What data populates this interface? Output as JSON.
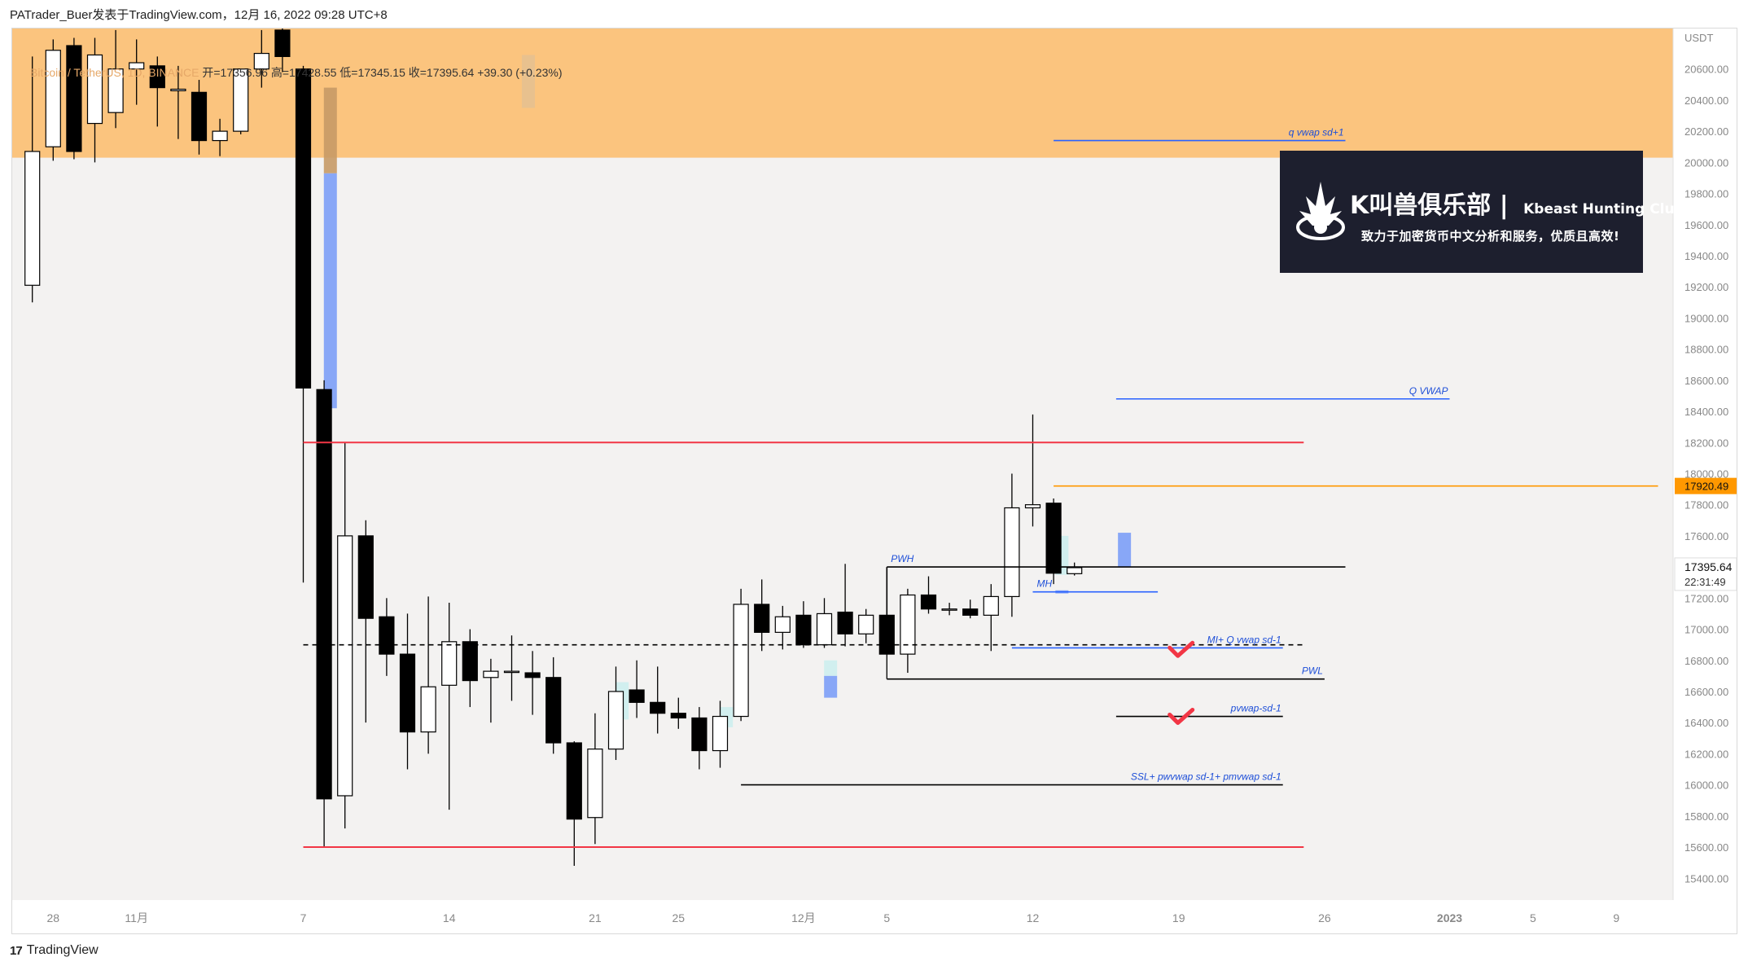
{
  "header": {
    "byline": "PATrader_Buer发表于TradingView.com，12月 16, 2022 09:28 UTC+8"
  },
  "legend": {
    "symbol": "Bitcoin / TetherUS, 1D, BINANCE",
    "ohlc": "开=17356.96 高=17428.55 低=17345.15 收=17395.64 +39.30 (+0.23%)"
  },
  "footer": {
    "brand": "TradingView",
    "logo_text": "17"
  },
  "banner": {
    "title_cn": "K叫兽俱乐部",
    "title_en": "Kbeast Hunting Club",
    "subtitle": "致力于加密货币中文分析和服务，优质且高效!"
  },
  "colors": {
    "supply_zone": "#fbc47e",
    "plot_bg": "#f3f2f1",
    "bull_body": "#ffffff",
    "bear_body": "#000000",
    "red_level": "#f23645",
    "blue_level": "#2962ff",
    "orange_level": "#ff9800",
    "volume_blue": "#7c9ef7",
    "volume_cyan": "#cdeeee"
  },
  "chart_data": {
    "type": "candlestick",
    "title": "Bitcoin / TetherUS, 1D, BINANCE",
    "currency_label": "USDT",
    "y_axis": {
      "ticks": [
        15400,
        15600,
        15800,
        16000,
        16200,
        16400,
        16600,
        16800,
        17000,
        17200,
        17400,
        17600,
        17800,
        18000,
        18200,
        18400,
        18600,
        18800,
        19000,
        19200,
        19400,
        19600,
        19800,
        20000,
        20200,
        20400,
        20600
      ],
      "range": [
        15260,
        20860
      ]
    },
    "x_axis": {
      "ticks": [
        {
          "label": "28",
          "bar": -12
        },
        {
          "label": "11月",
          "bar": -8
        },
        {
          "label": "7",
          "bar": 0
        },
        {
          "label": "14",
          "bar": 7
        },
        {
          "label": "21",
          "bar": 14
        },
        {
          "label": "25",
          "bar": 18
        },
        {
          "label": "12月",
          "bar": 24
        },
        {
          "label": "5",
          "bar": 28
        },
        {
          "label": "12",
          "bar": 35
        },
        {
          "label": "19",
          "bar": 42
        },
        {
          "label": "26",
          "bar": 49
        },
        {
          "label": "2023",
          "bar": 55
        },
        {
          "label": "5",
          "bar": 59
        },
        {
          "label": "9",
          "bar": 63
        }
      ]
    },
    "candles": [
      {
        "o": 19210,
        "h": 20680,
        "l": 19100,
        "c": 20070
      },
      {
        "o": 20100,
        "h": 20790,
        "l": 20010,
        "c": 20720
      },
      {
        "o": 20750,
        "h": 20800,
        "l": 20020,
        "c": 20070
      },
      {
        "o": 20250,
        "h": 20800,
        "l": 20000,
        "c": 20690
      },
      {
        "o": 20320,
        "h": 20850,
        "l": 20220,
        "c": 20600
      },
      {
        "o": 20600,
        "h": 20790,
        "l": 20370,
        "c": 20640
      },
      {
        "o": 20620,
        "h": 20680,
        "l": 20230,
        "c": 20480
      },
      {
        "o": 20460,
        "h": 20620,
        "l": 20150,
        "c": 20470
      },
      {
        "o": 20450,
        "h": 20530,
        "l": 20050,
        "c": 20140
      },
      {
        "o": 20140,
        "h": 20280,
        "l": 20040,
        "c": 20200
      },
      {
        "o": 20200,
        "h": 20580,
        "l": 20180,
        "c": 20600
      },
      {
        "o": 20600,
        "h": 20850,
        "l": 20480,
        "c": 20700
      },
      {
        "o": 20850,
        "h": 20860,
        "l": 20580,
        "c": 20680
      },
      {
        "o": 20600,
        "h": 20620,
        "l": 17300,
        "c": 18550
      },
      {
        "o": 18540,
        "h": 18600,
        "l": 15600,
        "c": 15910
      },
      {
        "o": 15930,
        "h": 18200,
        "l": 15720,
        "c": 17600
      },
      {
        "o": 17600,
        "h": 17700,
        "l": 16400,
        "c": 17070
      },
      {
        "o": 17080,
        "h": 17200,
        "l": 16700,
        "c": 16840
      },
      {
        "o": 16840,
        "h": 17100,
        "l": 16100,
        "c": 16340
      },
      {
        "o": 16340,
        "h": 17210,
        "l": 16200,
        "c": 16630
      },
      {
        "o": 16640,
        "h": 17170,
        "l": 15840,
        "c": 16920
      },
      {
        "o": 16920,
        "h": 17000,
        "l": 16500,
        "c": 16670
      },
      {
        "o": 16690,
        "h": 16810,
        "l": 16400,
        "c": 16730
      },
      {
        "o": 16730,
        "h": 16960,
        "l": 16540,
        "c": 16730
      },
      {
        "o": 16720,
        "h": 16860,
        "l": 16450,
        "c": 16690
      },
      {
        "o": 16690,
        "h": 16820,
        "l": 16200,
        "c": 16270
      },
      {
        "o": 16270,
        "h": 16280,
        "l": 15480,
        "c": 15780
      },
      {
        "o": 15790,
        "h": 16460,
        "l": 15620,
        "c": 16230
      },
      {
        "o": 16230,
        "h": 16760,
        "l": 16160,
        "c": 16600
      },
      {
        "o": 16610,
        "h": 16800,
        "l": 16430,
        "c": 16530
      },
      {
        "o": 16530,
        "h": 16760,
        "l": 16330,
        "c": 16460
      },
      {
        "o": 16460,
        "h": 16560,
        "l": 16360,
        "c": 16430
      },
      {
        "o": 16430,
        "h": 16500,
        "l": 16100,
        "c": 16220
      },
      {
        "o": 16220,
        "h": 16540,
        "l": 16110,
        "c": 16440
      },
      {
        "o": 16440,
        "h": 17260,
        "l": 16410,
        "c": 17160
      },
      {
        "o": 17160,
        "h": 17320,
        "l": 16860,
        "c": 16980
      },
      {
        "o": 16980,
        "h": 17150,
        "l": 16870,
        "c": 17080
      },
      {
        "o": 17090,
        "h": 17180,
        "l": 16880,
        "c": 16900
      },
      {
        "o": 16900,
        "h": 17200,
        "l": 16880,
        "c": 17100
      },
      {
        "o": 17110,
        "h": 17420,
        "l": 16890,
        "c": 16970
      },
      {
        "o": 16970,
        "h": 17130,
        "l": 16910,
        "c": 17090
      },
      {
        "o": 17090,
        "h": 17140,
        "l": 16680,
        "c": 16840
      },
      {
        "o": 16840,
        "h": 17260,
        "l": 16720,
        "c": 17220
      },
      {
        "o": 17220,
        "h": 17340,
        "l": 17100,
        "c": 17130
      },
      {
        "o": 17130,
        "h": 17170,
        "l": 17090,
        "c": 17130
      },
      {
        "o": 17130,
        "h": 17190,
        "l": 17070,
        "c": 17090
      },
      {
        "o": 17090,
        "h": 17290,
        "l": 16860,
        "c": 17210
      },
      {
        "o": 17210,
        "h": 18000,
        "l": 17080,
        "c": 17780
      },
      {
        "o": 17780,
        "h": 18380,
        "l": 17660,
        "c": 17800
      },
      {
        "o": 17810,
        "h": 17840,
        "l": 17290,
        "c": 17360
      },
      {
        "o": 17356.96,
        "h": 17428.55,
        "l": 17345.15,
        "c": 17395.64
      }
    ],
    "zones": [
      {
        "name": "supply",
        "from": 20030,
        "to": 20860
      }
    ],
    "levels": [
      {
        "label": "q vwap sd+1",
        "price": 20140,
        "from_bar": 36,
        "to_bar": 50,
        "color": "blue",
        "style": "solid"
      },
      {
        "label": "Q VWAP",
        "price": 18480,
        "from_bar": 39,
        "to_bar": 55,
        "color": "blue",
        "style": "solid"
      },
      {
        "label": "",
        "price": 18200,
        "from_bar": 0,
        "to_bar": 48,
        "color": "red",
        "style": "solid"
      },
      {
        "label": "",
        "price": 15600,
        "from_bar": 0,
        "to_bar": 48,
        "color": "red",
        "style": "solid"
      },
      {
        "label": "PWH",
        "price": 17400,
        "from_bar": 28,
        "to_bar": 50,
        "color": "black",
        "style": "solid"
      },
      {
        "label": "MH",
        "price": 17240,
        "from_bar": 35,
        "to_bar": 41,
        "color": "blue",
        "style": "solid"
      },
      {
        "label": "",
        "price": 16900,
        "from_bar": 0,
        "to_bar": 48,
        "color": "black",
        "style": "dashed"
      },
      {
        "label": "MI+ Q vwap sd-1",
        "price": 16880,
        "from_bar": 34,
        "to_bar": 47,
        "color": "blue",
        "style": "solid"
      },
      {
        "label": "PWL",
        "price": 16680,
        "from_bar": 28,
        "to_bar": 49,
        "color": "black",
        "style": "solid"
      },
      {
        "label": "pvwap-sd-1",
        "price": 16440,
        "from_bar": 39,
        "to_bar": 47,
        "color": "black",
        "style": "solid"
      },
      {
        "label": "SSL+ pwvwap sd-1+ pmvwap sd-1",
        "price": 16000,
        "from_bar": 21,
        "to_bar": 47,
        "color": "black",
        "style": "solid"
      },
      {
        "label": "",
        "price": 17920.49,
        "from_bar": 36,
        "to_bar": 65,
        "color": "orange",
        "style": "solid"
      }
    ],
    "price_labels": [
      {
        "text": "17920.49",
        "price": 17920.49,
        "style": "orange"
      },
      {
        "text": "17395.64",
        "price": 17395.64,
        "style": "current"
      },
      {
        "text": "22:31:49",
        "price": 17290,
        "style": "timer"
      }
    ],
    "checkmarks": [
      {
        "bar": 42,
        "price": 16860
      },
      {
        "bar": 42,
        "price": 16430
      }
    ]
  }
}
